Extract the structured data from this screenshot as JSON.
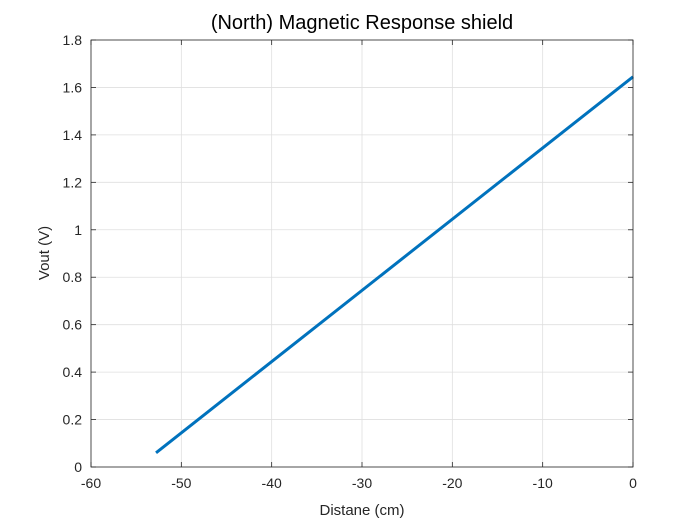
{
  "chart_data": {
    "type": "line",
    "title": "(North) Magnetic Response shield",
    "xlabel": "Distane (cm)",
    "ylabel": "Vout (V)",
    "xlim": [
      -60,
      0
    ],
    "ylim": [
      0,
      1.8
    ],
    "xticks": [
      -60,
      -50,
      -40,
      -30,
      -20,
      -10,
      0
    ],
    "yticks": [
      0,
      0.2,
      0.4,
      0.6,
      0.8,
      1,
      1.2,
      1.4,
      1.6,
      1.8
    ],
    "xtick_labels": [
      "-60",
      "-50",
      "-40",
      "-30",
      "-20",
      "-10",
      "0"
    ],
    "ytick_labels": [
      "0",
      "0.2",
      "0.4",
      "0.6",
      "0.8",
      "1",
      "1.2",
      "1.4",
      "1.6",
      "1.8"
    ],
    "grid": true,
    "series": [
      {
        "color": "#0072BD",
        "x": [
          -52.8,
          0
        ],
        "y": [
          0.06,
          1.645
        ]
      }
    ]
  }
}
